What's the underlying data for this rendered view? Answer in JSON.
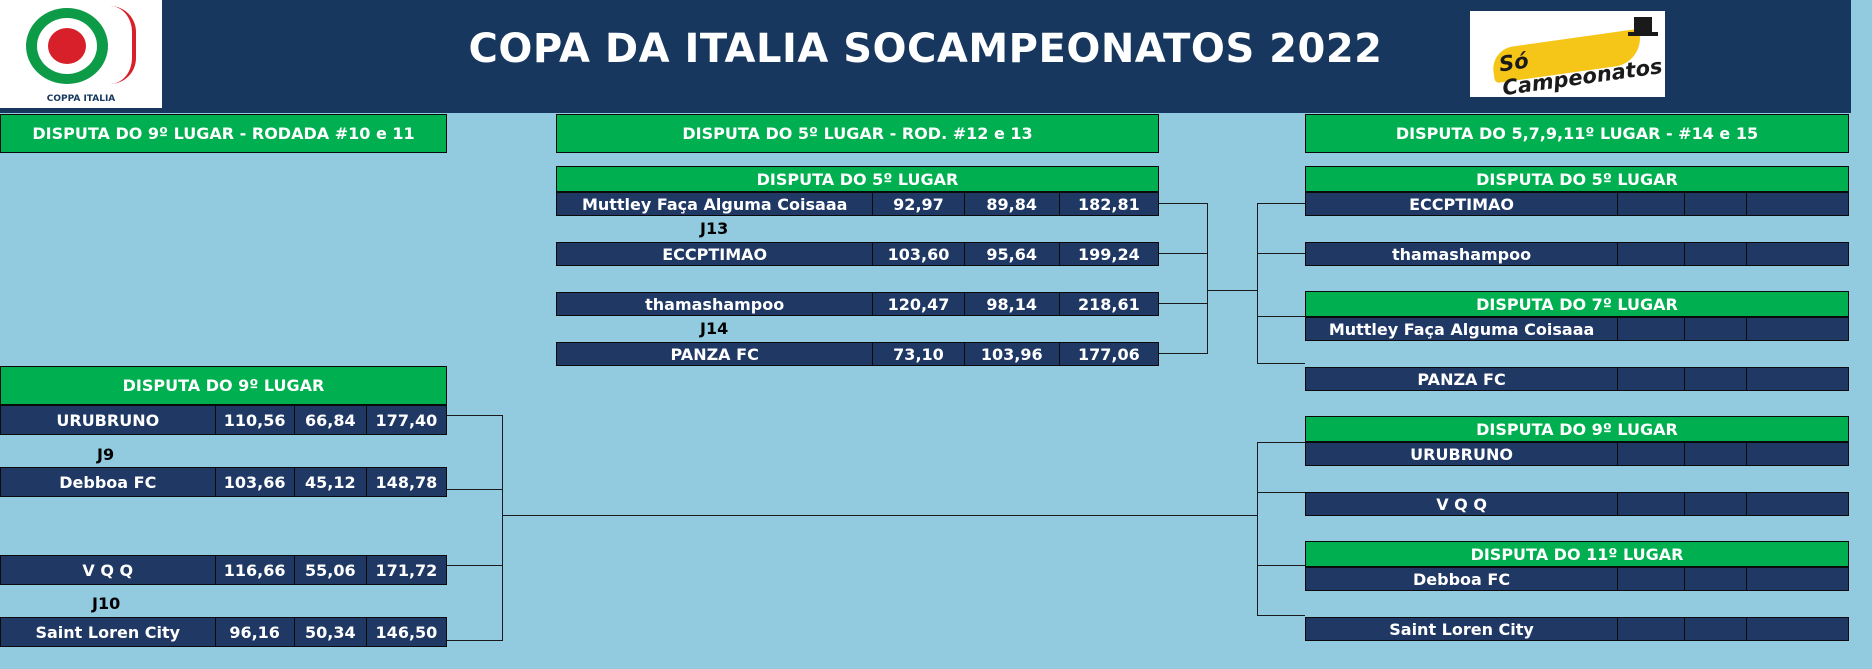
{
  "header": {
    "title": "COPA DA ITALIA SOCAMPEONATOS 2022",
    "left_logo_caption": "COPPA ITALIA",
    "right_logo_text": "Só Campeonatos"
  },
  "colors": {
    "header_bg": "#17375e",
    "green": "#00b050",
    "row_bg": "#1f3864",
    "page_bg": "#92cadf"
  },
  "sections": {
    "left_header": "DISPUTA DO 9º LUGAR - RODADA #10 e 11",
    "middle_header": "DISPUTA DO 5º LUGAR - ROD. #12 e 13",
    "right_header": "DISPUTA DO 5,7,9,11º LUGAR - #14 e 15"
  },
  "left": {
    "subheader": "DISPUTA DO 9º LUGAR",
    "j9": "J9",
    "j10": "J10",
    "rows": [
      {
        "team": "URUBRUNO",
        "a": "110,56",
        "b": "66,84",
        "t": "177,40"
      },
      {
        "team": "Debboa FC",
        "a": "103,66",
        "b": "45,12",
        "t": "148,78"
      },
      {
        "team": "V Q Q",
        "a": "116,66",
        "b": "55,06",
        "t": "171,72"
      },
      {
        "team": "Saint Loren City",
        "a": "96,16",
        "b": "50,34",
        "t": "146,50"
      }
    ]
  },
  "middle": {
    "subheader": "DISPUTA DO 5º LUGAR",
    "j13": "J13",
    "j14": "J14",
    "rows": [
      {
        "team": "Muttley Faça Alguma Coisaaa",
        "a": "92,97",
        "b": "89,84",
        "t": "182,81"
      },
      {
        "team": "ECCPTIMAO",
        "a": "103,60",
        "b": "95,64",
        "t": "199,24"
      },
      {
        "team": "thamashampoo",
        "a": "120,47",
        "b": "98,14",
        "t": "218,61"
      },
      {
        "team": "PANZA FC",
        "a": "73,10",
        "b": "103,96",
        "t": "177,06"
      }
    ]
  },
  "right": {
    "sub5": "DISPUTA DO 5º LUGAR",
    "sub7": "DISPUTA DO 7º LUGAR",
    "sub9": "DISPUTA DO 9º LUGAR",
    "sub11": "DISPUTA DO 11º LUGAR",
    "teams": [
      "ECCPTIMAO",
      "thamashampoo",
      "Muttley Faça Alguma Coisaaa",
      "PANZA FC",
      "URUBRUNO",
      "V Q Q",
      "Debboa FC",
      "Saint Loren City"
    ]
  }
}
